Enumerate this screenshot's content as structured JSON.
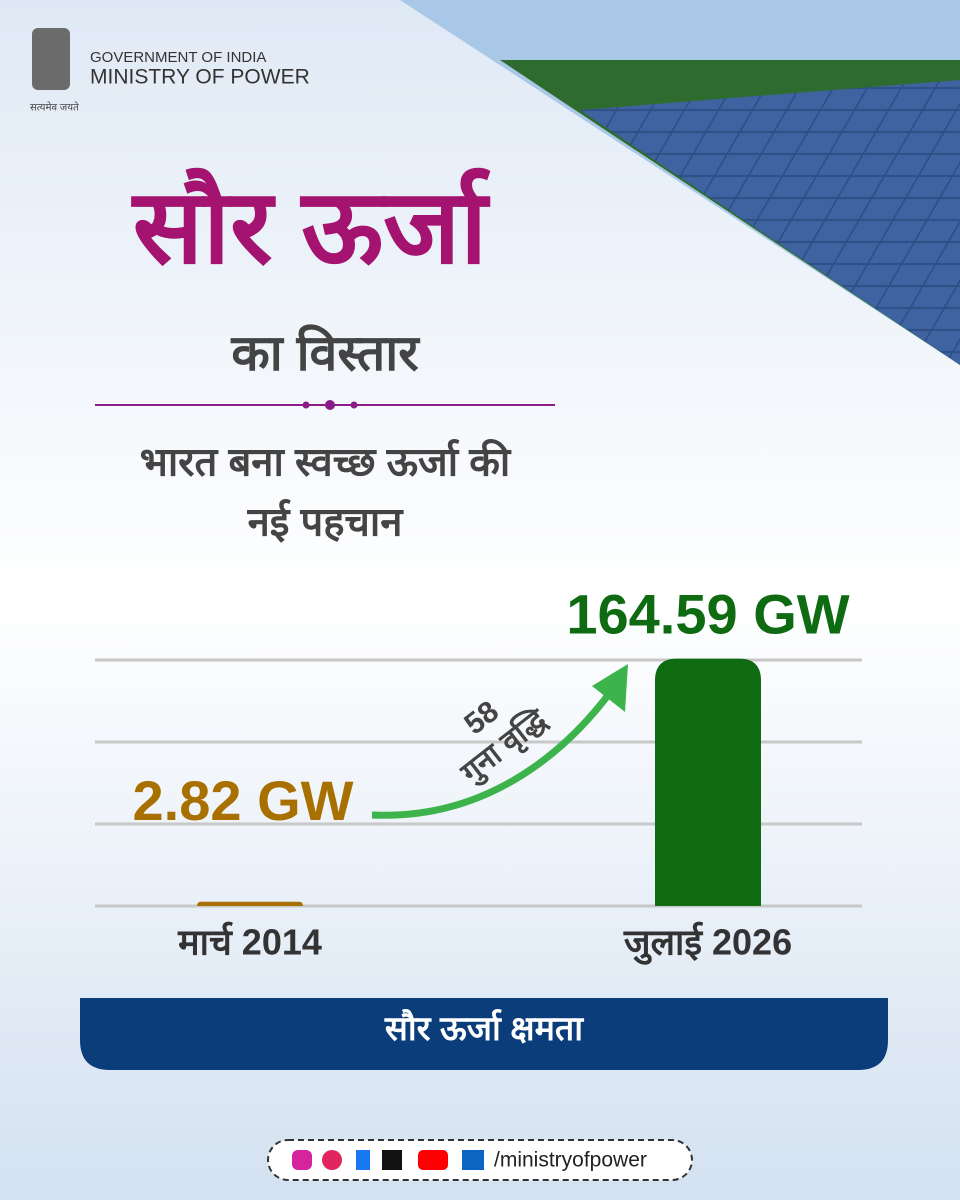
{
  "header": {
    "line1": "GOVERNMENT OF INDIA",
    "line2": "MINISTRY OF POWER",
    "motto": "सत्यमेव जयते"
  },
  "chart_data": {
    "type": "bar",
    "title": "सौर ऊर्जा",
    "subtitle": "का विस्तार",
    "tagline": [
      "भारत बना स्वच्छ ऊर्जा की",
      "नई पहचान"
    ],
    "categories": [
      "मार्च 2014",
      "जुलाई  2026"
    ],
    "values": [
      2.82,
      164.59
    ],
    "value_labels": [
      "2.82 GW",
      "164.59 GW"
    ],
    "colors": [
      "#a87000",
      "#0e6b12"
    ],
    "ylim": [
      0,
      165
    ],
    "annotation": [
      "58",
      "गुना वृद्धि"
    ],
    "x_label": "सौर ऊर्जा क्षमता"
  },
  "footer": {
    "handle": "/ministryofpower"
  }
}
